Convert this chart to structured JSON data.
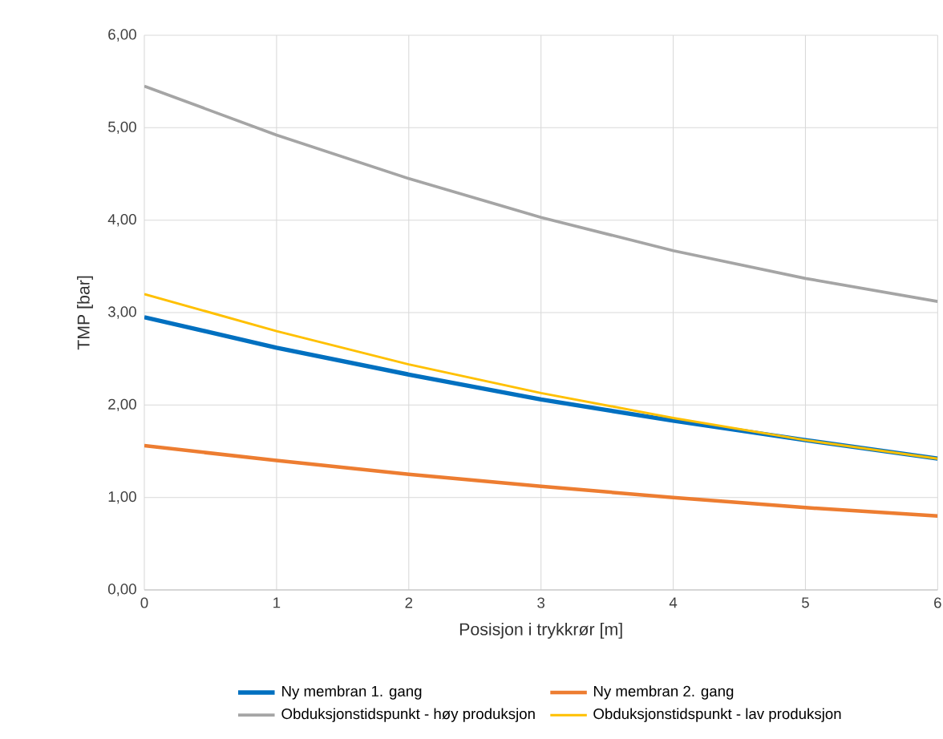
{
  "chart_data": {
    "type": "line",
    "xlabel": "Posisjon i trykkrør [m]",
    "ylabel": "TMP [bar]",
    "x": [
      0,
      1,
      2,
      3,
      4,
      5,
      6
    ],
    "series": [
      {
        "name": "Ny membran 1. gang",
        "color": "#0070c0",
        "values": [
          2.95,
          2.62,
          2.33,
          2.06,
          1.83,
          1.62,
          1.42
        ]
      },
      {
        "name": "Ny membran 2. gang",
        "color": "#ed7d31",
        "values": [
          1.56,
          1.4,
          1.25,
          1.12,
          1.0,
          0.89,
          0.8
        ]
      },
      {
        "name": "Obduksjonstidspunkt - høy produksjon",
        "color": "#a5a5a5",
        "values": [
          5.45,
          4.92,
          4.45,
          4.03,
          3.67,
          3.37,
          3.12
        ]
      },
      {
        "name": "Obduksjonstidspunkt - lav produksjon",
        "color": "#ffc000",
        "values": [
          3.2,
          2.8,
          2.44,
          2.13,
          1.86,
          1.62,
          1.42
        ]
      }
    ],
    "xlim": [
      0,
      6
    ],
    "xticks": [
      0,
      1,
      2,
      3,
      4,
      5,
      6
    ],
    "ylim": [
      0,
      6
    ],
    "yticks": [
      {
        "value": 0,
        "label": "0,00"
      },
      {
        "value": 1,
        "label": "1,00"
      },
      {
        "value": 2,
        "label": "2,00"
      },
      {
        "value": 3,
        "label": "3,00"
      },
      {
        "value": 4,
        "label": "4,00"
      },
      {
        "value": 5,
        "label": "5,00"
      },
      {
        "value": 6,
        "label": "6,00"
      }
    ],
    "grid": true,
    "legend": "bottom",
    "marker": "none",
    "line_style": "solid"
  }
}
